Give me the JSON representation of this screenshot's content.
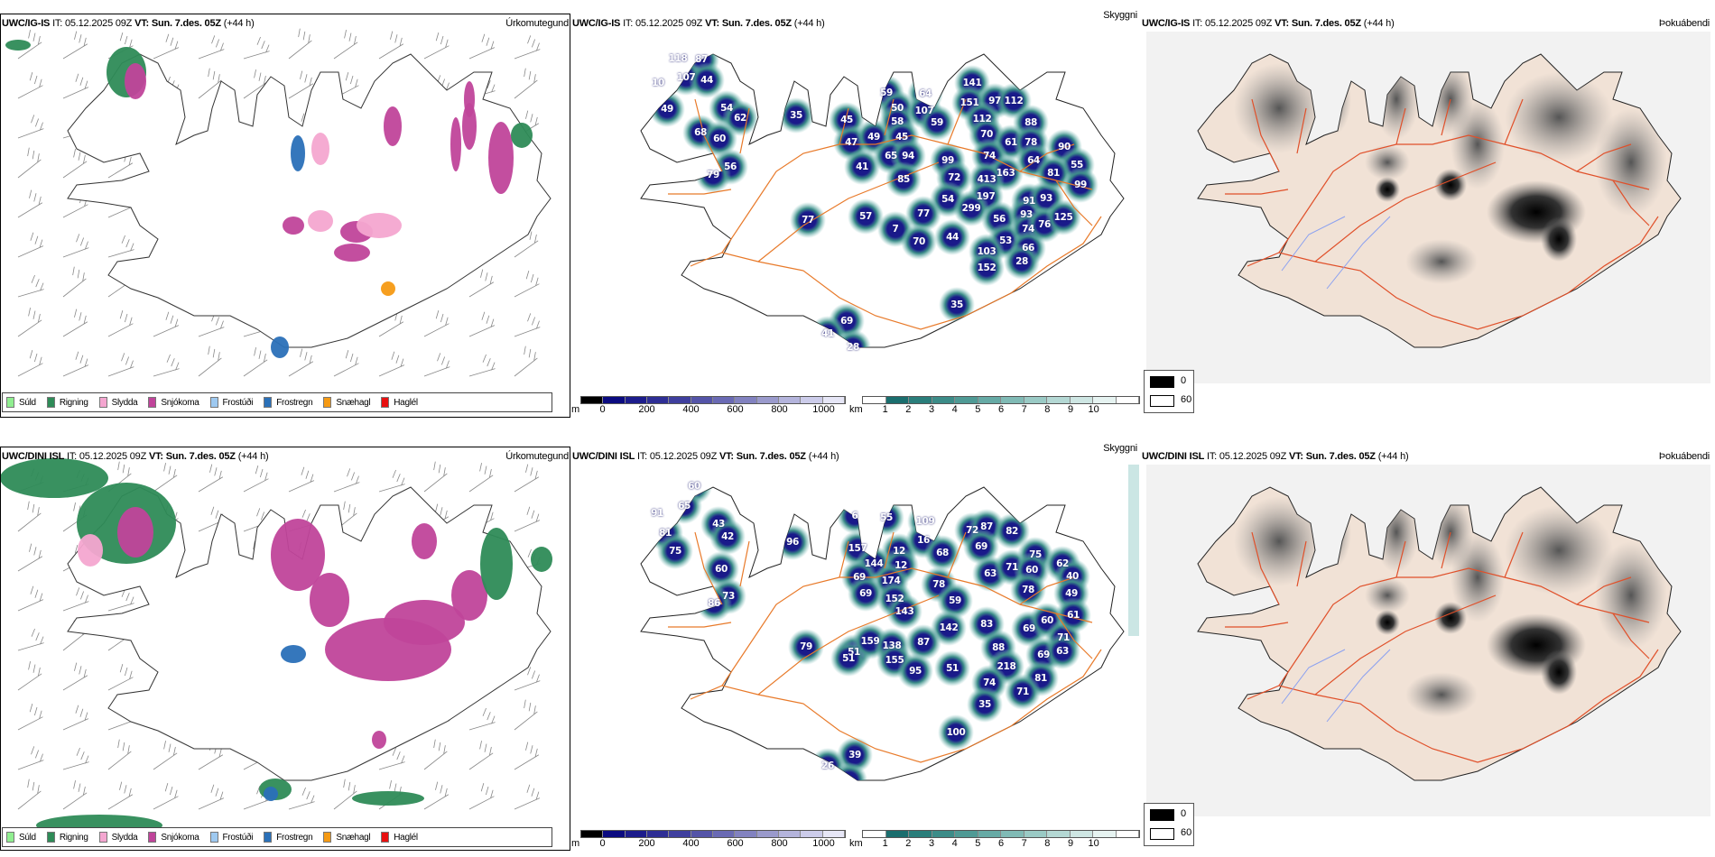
{
  "rows": [
    {
      "model": "UWC/IG-IS",
      "it_label": "IT:",
      "it_value": "05.12.2025 09Z",
      "vt_label": "VT:",
      "vt_value": "Sun. 7.des. 05Z",
      "lead": "(+44 h)"
    },
    {
      "model": "UWC/DINI ISL",
      "it_label": "IT:",
      "it_value": "05.12.2025 09Z",
      "vt_label": "VT:",
      "vt_value": "Sun. 7.des. 05Z",
      "lead": "(+44 h)"
    }
  ],
  "panel_names": {
    "precip_type": "Úrkomutegund",
    "visibility": "Skyggni",
    "fog": "Þokuábendi"
  },
  "precip_legend": [
    {
      "label": "Súld",
      "color": "#90ee90"
    },
    {
      "label": "Rigning",
      "color": "#2e8b57"
    },
    {
      "label": "Slydda",
      "color": "#f4a6d0"
    },
    {
      "label": "Snjókoma",
      "color": "#c0449a"
    },
    {
      "label": "Frostúði",
      "color": "#9ec9f0"
    },
    {
      "label": "Frostregn",
      "color": "#2a70b8"
    },
    {
      "label": "Snæhagl",
      "color": "#f59a14"
    },
    {
      "label": "Haglél",
      "color": "#e81010"
    }
  ],
  "cloud_base_bar": {
    "unit": "m",
    "ticks": [
      "0",
      "200",
      "400",
      "600",
      "800",
      "1000"
    ],
    "colors": [
      "#000000",
      "#0a0a80",
      "#1c1c8c",
      "#2e2e95",
      "#3f3f9e",
      "#5454a8",
      "#6a6ab4",
      "#8282c0",
      "#9a9acc",
      "#b4b4dc",
      "#ccccea",
      "#e6e6f6"
    ]
  },
  "visibility_bar": {
    "unit": "km",
    "ticks": [
      "1",
      "2",
      "3",
      "4",
      "5",
      "6",
      "7",
      "8",
      "9",
      "10"
    ],
    "colors": [
      "#ffffff",
      "#1a6e6e",
      "#2a7e7b",
      "#3c8c88",
      "#4f9a95",
      "#66aaa5",
      "#80bab5",
      "#9acac5",
      "#b4d8d4",
      "#cee6e3",
      "#e6f3f1",
      "#ffffff"
    ]
  },
  "fog_legend": [
    {
      "label": "0",
      "color": "#000000"
    },
    {
      "label": "60",
      "color": "#ffffff"
    }
  ],
  "cloud_labels_top": [
    "118",
    "87",
    "107",
    "44",
    "10",
    "49",
    "54",
    "62",
    "68",
    "60",
    "56",
    "79",
    "35",
    "45",
    "47",
    "41",
    "49",
    "59",
    "77",
    "57",
    "50",
    "58",
    "45",
    "65",
    "94",
    "85",
    "7",
    "64",
    "107",
    "59",
    "141",
    "151",
    "97",
    "112",
    "112",
    "70",
    "61",
    "88",
    "78",
    "74",
    "64",
    "163",
    "99",
    "72",
    "413",
    "54",
    "197",
    "299",
    "77",
    "70",
    "44",
    "56",
    "53",
    "103",
    "152",
    "91",
    "93",
    "74",
    "66",
    "28",
    "93",
    "76",
    "125",
    "90",
    "55",
    "81",
    "99",
    "35",
    "69",
    "41",
    "28"
  ],
  "cloud_labels_bottom": [
    "60",
    "65",
    "91",
    "43",
    "81",
    "42",
    "75",
    "96",
    "60",
    "73",
    "86",
    "79",
    "51",
    "6",
    "55",
    "157",
    "12",
    "144",
    "12",
    "69",
    "174",
    "69",
    "152",
    "143",
    "51",
    "159",
    "138",
    "155",
    "109",
    "16",
    "68",
    "72",
    "87",
    "82",
    "69",
    "63",
    "71",
    "75",
    "60",
    "78",
    "78",
    "59",
    "142",
    "83",
    "87",
    "95",
    "51",
    "88",
    "218",
    "74",
    "35",
    "100",
    "69",
    "60",
    "71",
    "69",
    "63",
    "81",
    "71",
    "62",
    "40",
    "49",
    "61",
    "39",
    "26"
  ]
}
